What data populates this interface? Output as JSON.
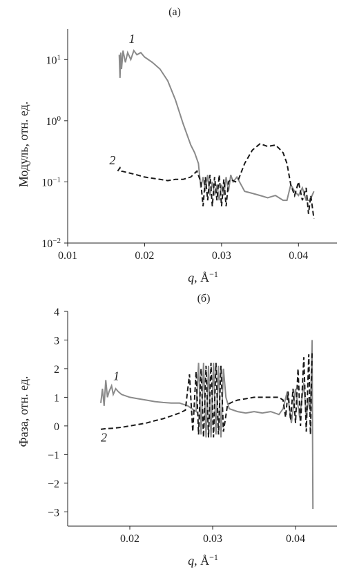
{
  "chart_data": [
    {
      "panel_label": "(а)",
      "type": "line",
      "xlabel": "q, Å⁻¹",
      "xlabel_var": "q",
      "xlabel_unit": ", Å",
      "xlabel_exp": "−1",
      "ylabel": "Модуль, отн. ед.",
      "yscale": "log",
      "xlim": [
        0.01,
        0.045
      ],
      "ylim_exp": [
        -2,
        1.5
      ],
      "x_ticks": [
        "0.01",
        "0.02",
        "0.03",
        "0.04"
      ],
      "x_tick_values": [
        0.01,
        0.02,
        0.03,
        0.04
      ],
      "y_ticks": [
        {
          "base": "10",
          "exp": "1",
          "value": 10
        },
        {
          "base": "10",
          "exp": "0",
          "value": 1
        },
        {
          "base": "10",
          "exp": "−1",
          "value": 0.1
        },
        {
          "base": "10",
          "exp": "−2",
          "value": 0.01
        }
      ],
      "series": [
        {
          "label": "1",
          "color": "#8a8a8a",
          "style": "solid",
          "x": [
            0.0167,
            0.0168,
            0.0169,
            0.017,
            0.0172,
            0.0175,
            0.0178,
            0.0182,
            0.0186,
            0.019,
            0.0195,
            0.02,
            0.021,
            0.022,
            0.023,
            0.024,
            0.025,
            0.026,
            0.0265,
            0.027,
            0.0273,
            0.0276,
            0.0279,
            0.0282,
            0.0285,
            0.0288,
            0.0291,
            0.0294,
            0.0297,
            0.03,
            0.0303,
            0.0306,
            0.0309,
            0.0312,
            0.0315,
            0.032,
            0.033,
            0.034,
            0.035,
            0.036,
            0.037,
            0.038,
            0.0385,
            0.039,
            0.0395,
            0.04,
            0.0405,
            0.041,
            0.0415,
            0.042
          ],
          "y": [
            12,
            5,
            13,
            7,
            14,
            9,
            13,
            10,
            14,
            12,
            13,
            11,
            9,
            7,
            4.5,
            2.2,
            0.9,
            0.4,
            0.3,
            0.2,
            0.08,
            0.12,
            0.07,
            0.13,
            0.06,
            0.1,
            0.06,
            0.09,
            0.05,
            0.09,
            0.06,
            0.12,
            0.07,
            0.13,
            0.1,
            0.12,
            0.07,
            0.065,
            0.06,
            0.055,
            0.06,
            0.05,
            0.05,
            0.09,
            0.07,
            0.06,
            0.08,
            0.05,
            0.05,
            0.07
          ]
        },
        {
          "label": "2",
          "color": "#1a1a1a",
          "style": "dashed",
          "x": [
            0.0165,
            0.0168,
            0.017,
            0.018,
            0.019,
            0.02,
            0.021,
            0.022,
            0.023,
            0.024,
            0.025,
            0.026,
            0.0268,
            0.0273,
            0.0276,
            0.0279,
            0.0282,
            0.0285,
            0.0288,
            0.0291,
            0.0294,
            0.0297,
            0.03,
            0.0303,
            0.0306,
            0.0309,
            0.0312,
            0.0318,
            0.0322,
            0.033,
            0.034,
            0.035,
            0.036,
            0.037,
            0.0375,
            0.038,
            0.0385,
            0.039,
            0.0395,
            0.04,
            0.0405,
            0.041,
            0.0413,
            0.0416,
            0.042
          ],
          "y": [
            0.15,
            0.17,
            0.15,
            0.14,
            0.13,
            0.12,
            0.115,
            0.11,
            0.105,
            0.11,
            0.11,
            0.12,
            0.15,
            0.1,
            0.04,
            0.12,
            0.05,
            0.13,
            0.04,
            0.12,
            0.05,
            0.13,
            0.04,
            0.11,
            0.04,
            0.1,
            0.11,
            0.1,
            0.11,
            0.2,
            0.33,
            0.42,
            0.38,
            0.4,
            0.35,
            0.3,
            0.2,
            0.09,
            0.06,
            0.1,
            0.05,
            0.08,
            0.03,
            0.06,
            0.025
          ]
        }
      ]
    },
    {
      "panel_label": "(б)",
      "type": "line",
      "xlabel": "q, Å⁻¹",
      "xlabel_var": "q",
      "xlabel_unit": ", Å",
      "xlabel_exp": "−1",
      "ylabel": "Фаза, отн. ед.",
      "xlim": [
        0.0125,
        0.045
      ],
      "ylim": [
        -3.5,
        4
      ],
      "x_ticks": [
        "0.02",
        "0.03",
        "0.04"
      ],
      "x_tick_values": [
        0.02,
        0.03,
        0.04
      ],
      "y_ticks": [
        "4",
        "3",
        "2",
        "1",
        "0",
        "−1",
        "−2",
        "−3"
      ],
      "y_tick_values": [
        4,
        3,
        2,
        1,
        0,
        -1,
        -2,
        -3
      ],
      "series": [
        {
          "label": "1",
          "color": "#8a8a8a",
          "style": "solid",
          "x": [
            0.0165,
            0.0167,
            0.0169,
            0.0171,
            0.0173,
            0.0175,
            0.0178,
            0.018,
            0.0183,
            0.0186,
            0.019,
            0.02,
            0.021,
            0.022,
            0.023,
            0.024,
            0.025,
            0.026,
            0.027,
            0.0275,
            0.028,
            0.0283,
            0.0286,
            0.0289,
            0.0292,
            0.0295,
            0.0298,
            0.0301,
            0.0304,
            0.0307,
            0.031,
            0.0313,
            0.0316,
            0.032,
            0.033,
            0.034,
            0.035,
            0.036,
            0.037,
            0.038,
            0.0385,
            0.039,
            0.0395,
            0.04,
            0.0405,
            0.041,
            0.0413,
            0.0416,
            0.0418,
            0.042,
            0.0421
          ],
          "y": [
            0.8,
            1.3,
            0.7,
            1.6,
            1.0,
            1.2,
            1.4,
            1.1,
            1.3,
            1.2,
            1.1,
            1.0,
            0.95,
            0.9,
            0.85,
            0.82,
            0.8,
            0.8,
            0.7,
            0.6,
            0.5,
            2.2,
            -0.3,
            2.2,
            -0.4,
            2.1,
            -0.4,
            2.2,
            -0.3,
            2.1,
            -0.4,
            2.0,
            1.0,
            0.6,
            0.5,
            0.45,
            0.5,
            0.45,
            0.5,
            0.4,
            0.6,
            1.2,
            0.1,
            1.3,
            0.3,
            1.5,
            0.3,
            1.0,
            0.5,
            3.0,
            -2.9
          ]
        },
        {
          "label": "2",
          "color": "#1a1a1a",
          "style": "dashed",
          "x": [
            0.0165,
            0.017,
            0.018,
            0.019,
            0.02,
            0.021,
            0.022,
            0.023,
            0.024,
            0.025,
            0.026,
            0.0267,
            0.0272,
            0.0276,
            0.028,
            0.0283,
            0.0286,
            0.0289,
            0.0292,
            0.0295,
            0.0298,
            0.0301,
            0.0304,
            0.0307,
            0.031,
            0.0313,
            0.0318,
            0.0325,
            0.033,
            0.034,
            0.035,
            0.036,
            0.037,
            0.038,
            0.0385,
            0.0388,
            0.0391,
            0.0394,
            0.0397,
            0.04,
            0.0403,
            0.0406,
            0.041,
            0.0413,
            0.0416,
            0.0418,
            0.042
          ],
          "y": [
            -0.12,
            -0.1,
            -0.08,
            -0.05,
            0.0,
            0.05,
            0.1,
            0.18,
            0.25,
            0.35,
            0.45,
            0.55,
            1.8,
            -0.2,
            1.9,
            -0.3,
            2.0,
            -0.4,
            2.1,
            -0.4,
            2.2,
            -0.4,
            2.2,
            -0.3,
            2.1,
            -0.2,
            0.75,
            0.85,
            0.9,
            0.95,
            1.0,
            1.0,
            1.0,
            1.0,
            0.9,
            0.3,
            1.2,
            0.2,
            1.3,
            0.1,
            2.0,
            0.0,
            2.4,
            -0.2,
            2.5,
            -0.3,
            2.6
          ]
        }
      ]
    }
  ]
}
